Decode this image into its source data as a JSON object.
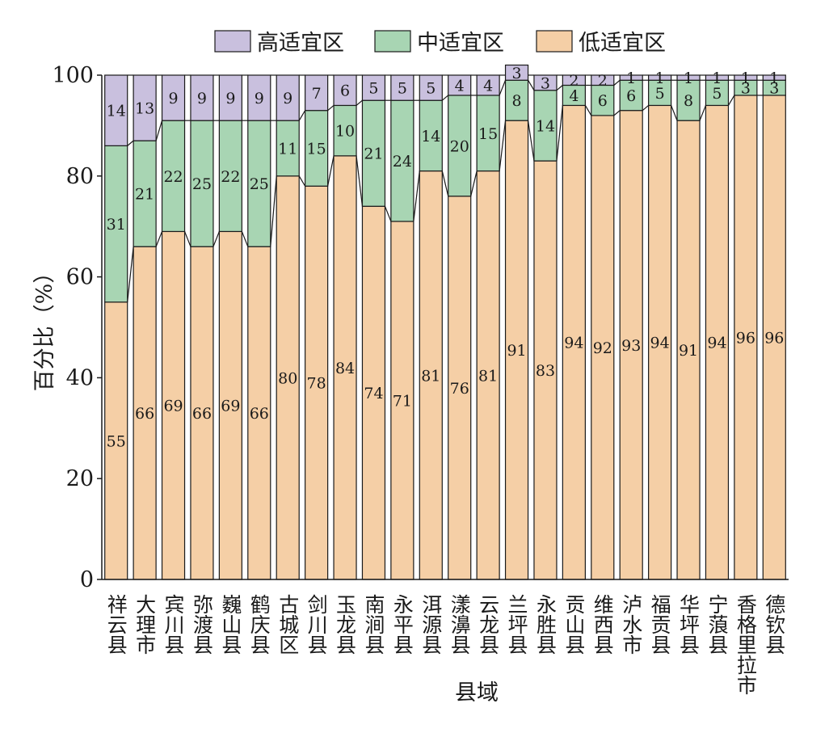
{
  "chart_data": {
    "type": "bar",
    "stacked": true,
    "title": "",
    "xlabel": "县域",
    "ylabel": "百分比（%）",
    "ylim": [
      0,
      100
    ],
    "yticks": [
      "0",
      "20",
      "40",
      "60",
      "80",
      "100"
    ],
    "legend_position": "top",
    "grid": false,
    "categories": [
      "祥云县",
      "大理市",
      "宾川县",
      "弥渡县",
      "巍山县",
      "鹤庆县",
      "古城区",
      "剑川县",
      "玉龙县",
      "南涧县",
      "永平县",
      "洱源县",
      "漾濞县",
      "云龙县",
      "兰坪县",
      "永胜县",
      "贡山县",
      "维西县",
      "泸水市",
      "福贡县",
      "华坪县",
      "宁蒗县",
      "香格里拉市",
      "德钦县"
    ],
    "series": [
      {
        "name": "低适宜区",
        "color": "#f5cfa6",
        "values": [
          55,
          66,
          69,
          66,
          69,
          66,
          80,
          78,
          84,
          74,
          71,
          81,
          76,
          81,
          91,
          83,
          94,
          92,
          93,
          94,
          91,
          94,
          96,
          96
        ]
      },
      {
        "name": "中适宜区",
        "color": "#a8d5b3",
        "values": [
          31,
          21,
          22,
          25,
          22,
          25,
          11,
          15,
          10,
          21,
          24,
          14,
          20,
          15,
          8,
          14,
          4,
          6,
          6,
          5,
          8,
          5,
          3,
          3
        ]
      },
      {
        "name": "高适宜区",
        "color": "#c9c0de",
        "values": [
          14,
          13,
          9,
          9,
          9,
          9,
          9,
          7,
          6,
          5,
          5,
          5,
          4,
          4,
          3,
          3,
          2,
          2,
          1,
          1,
          1,
          1,
          1,
          1
        ]
      }
    ]
  }
}
